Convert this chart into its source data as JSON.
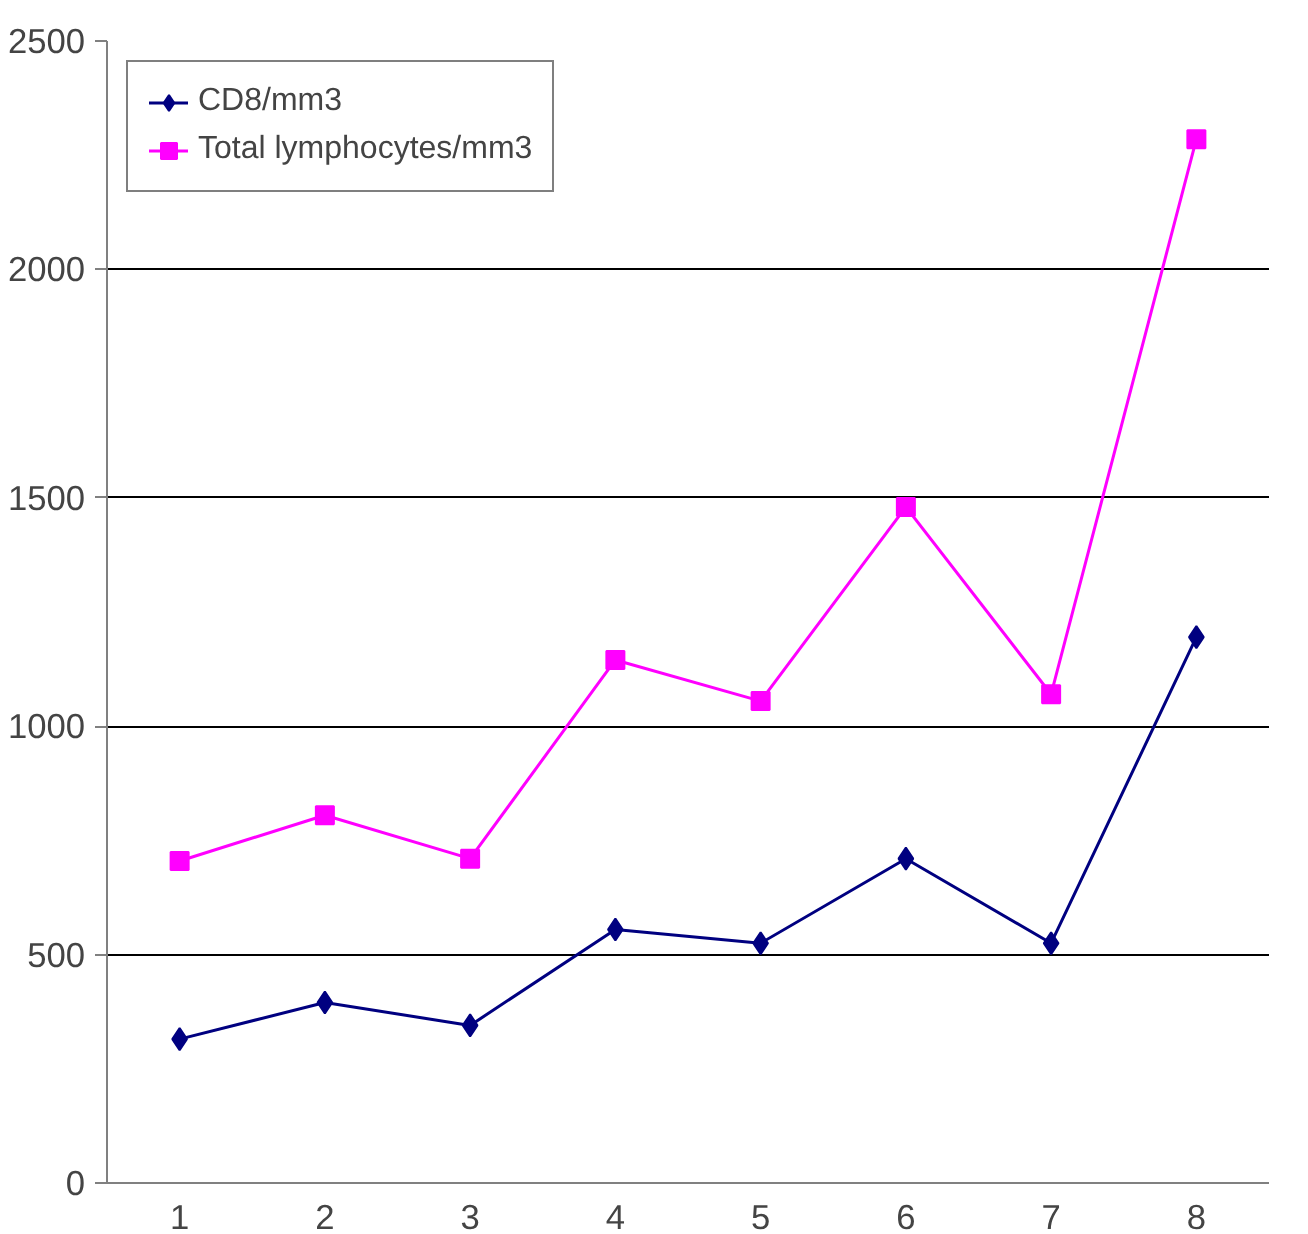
{
  "chart_data": {
    "type": "line",
    "categories": [
      "1",
      "2",
      "3",
      "4",
      "5",
      "6",
      "7",
      "8"
    ],
    "series": [
      {
        "name": "CD8/mm3",
        "color": "#000080",
        "marker": "diamond",
        "values": [
          315,
          395,
          345,
          555,
          525,
          710,
          525,
          1195
        ]
      },
      {
        "name": "Total lymphocytes/mm3",
        "color": "#ff00ff",
        "marker": "square",
        "values": [
          705,
          805,
          710,
          1145,
          1055,
          1480,
          1070,
          2285
        ]
      }
    ],
    "ylim": [
      0,
      2500
    ],
    "yticks": [
      0,
      500,
      1000,
      1500,
      2000,
      2500
    ],
    "grid": "y",
    "legend": "top left"
  }
}
